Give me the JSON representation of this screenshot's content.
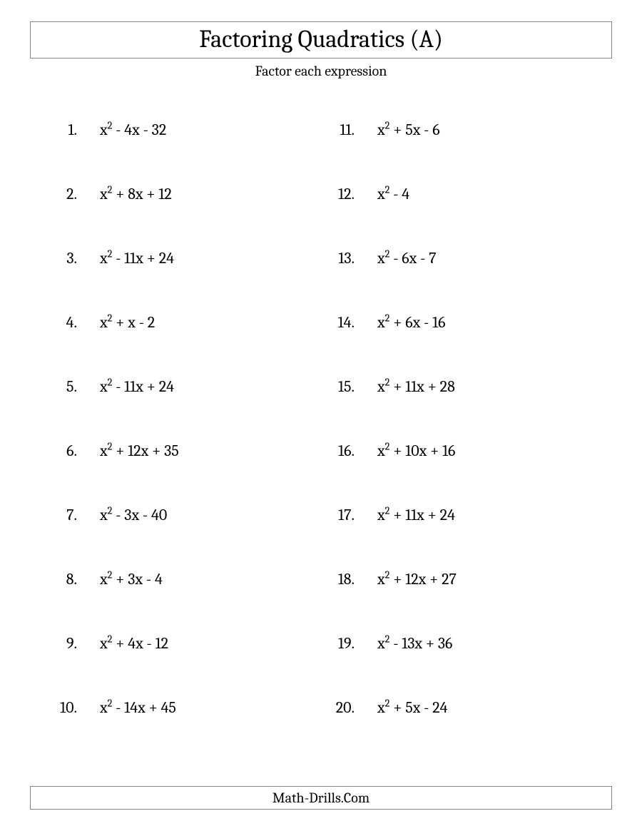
{
  "title": "Factoring Quadratics (A)",
  "subtitle": "Factor each expression",
  "footer": "Math-Drills.Com",
  "colors": {
    "background": "#ffffff",
    "text": "#000000",
    "border": "#808080"
  },
  "typography": {
    "title_fontsize": 34,
    "subtitle_fontsize": 20,
    "problem_fontsize": 22,
    "footer_fontsize": 20,
    "font_family": "Cambria, Georgia, Times New Roman, serif"
  },
  "layout": {
    "columns": 2,
    "rows_per_column": 10,
    "row_spacing": 64
  },
  "problems_left": [
    {
      "num": "1.",
      "expr": "x² - 4x - 32"
    },
    {
      "num": "2.",
      "expr": "x² + 8x + 12"
    },
    {
      "num": "3.",
      "expr": "x² - 11x + 24"
    },
    {
      "num": "4.",
      "expr": "x² + x - 2"
    },
    {
      "num": "5.",
      "expr": "x² - 11x + 24"
    },
    {
      "num": "6.",
      "expr": "x² + 12x + 35"
    },
    {
      "num": "7.",
      "expr": "x² - 3x - 40"
    },
    {
      "num": "8.",
      "expr": "x² + 3x - 4"
    },
    {
      "num": "9.",
      "expr": "x² + 4x - 12"
    },
    {
      "num": "10.",
      "expr": "x² - 14x + 45"
    }
  ],
  "problems_right": [
    {
      "num": "11.",
      "expr": "x² + 5x - 6"
    },
    {
      "num": "12.",
      "expr": "x² - 4"
    },
    {
      "num": "13.",
      "expr": "x² - 6x - 7"
    },
    {
      "num": "14.",
      "expr": "x² + 6x - 16"
    },
    {
      "num": "15.",
      "expr": "x² + 11x + 28"
    },
    {
      "num": "16.",
      "expr": "x² + 10x + 16"
    },
    {
      "num": "17.",
      "expr": "x² + 11x + 24"
    },
    {
      "num": "18.",
      "expr": "x² + 12x + 27"
    },
    {
      "num": "19.",
      "expr": "x² - 13x + 36"
    },
    {
      "num": "20.",
      "expr": "x² + 5x - 24"
    }
  ]
}
